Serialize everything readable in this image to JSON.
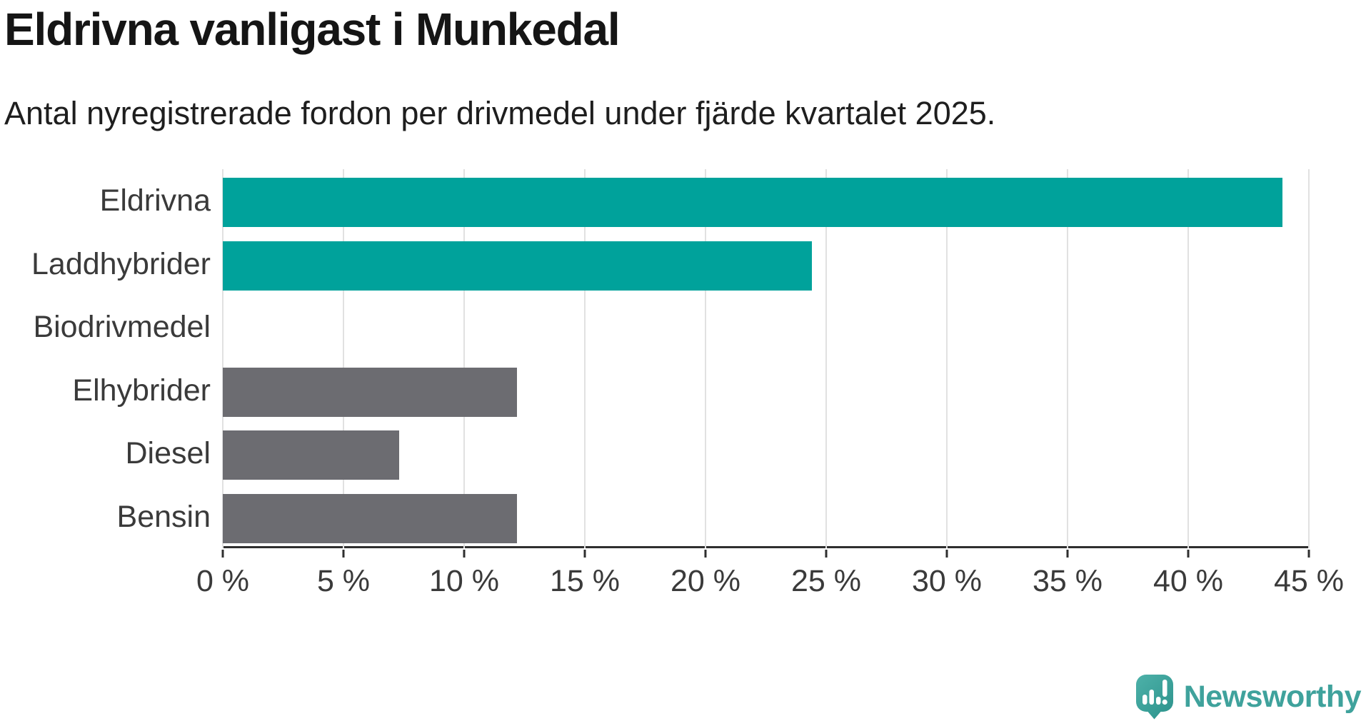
{
  "header": {
    "title": "Eldrivna vanligast i Munkedal",
    "subtitle": "Antal nyregistrerade fordon per drivmedel under fjärde kvartalet 2025."
  },
  "chart_data": {
    "type": "bar",
    "orientation": "horizontal",
    "title": "Eldrivna vanligast i Munkedal",
    "subtitle": "Antal nyregistrerade fordon per drivmedel under fjärde kvartalet 2025.",
    "categories": [
      "Eldrivna",
      "Laddhybrider",
      "Biodrivmedel",
      "Elhybrider",
      "Diesel",
      "Bensin"
    ],
    "values": [
      43.9,
      24.4,
      0,
      12.2,
      7.3,
      12.2
    ],
    "unit": "%",
    "colors": [
      "#00a29b",
      "#00a29b",
      "#00a29b",
      "#6c6c71",
      "#6c6c71",
      "#6c6c71"
    ],
    "x_axis": {
      "min": 0,
      "max": 45,
      "tick_step": 5,
      "tick_labels": [
        "0 %",
        "5 %",
        "10 %",
        "15 %",
        "20 %",
        "25 %",
        "30 %",
        "35 %",
        "40 %",
        "45 %"
      ]
    },
    "grid": true,
    "legend": "none",
    "accent_color": "#00a29b",
    "muted_color": "#6c6c71"
  },
  "footer": {
    "brand": "Newsworthy",
    "brand_color": "#3fa29c",
    "logo_icon": "newsworthy-speech-bubble-chart-icon"
  }
}
